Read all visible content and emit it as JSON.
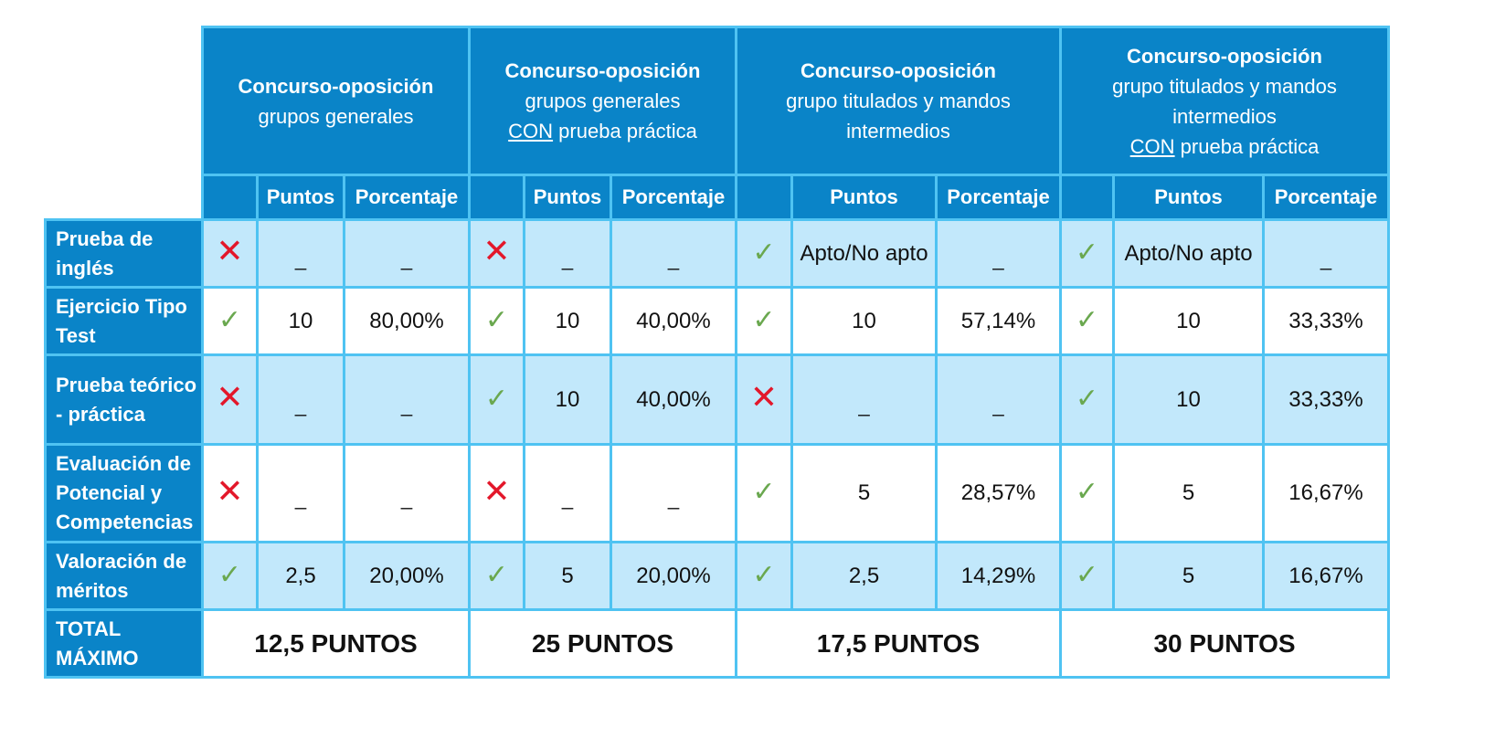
{
  "groups": [
    {
      "title": "Concurso-oposición",
      "sub1": "grupos generales",
      "con": "",
      "sub2": ""
    },
    {
      "title": "Concurso-oposición",
      "sub1": "grupos generales",
      "con": "CON",
      "sub2": " prueba práctica"
    },
    {
      "title": "Concurso-oposición",
      "sub1": "grupo titulados y mandos intermedios",
      "con": "",
      "sub2": ""
    },
    {
      "title": "Concurso-oposición",
      "sub1": "grupo titulados y mandos intermedios",
      "con": "CON",
      "sub2": " prueba práctica"
    }
  ],
  "col_headers": {
    "points": "Puntos",
    "percent": "Porcentaje"
  },
  "rows": [
    {
      "label": "Prueba de inglés",
      "cells": [
        {
          "mark": "no",
          "pts": "_",
          "pct": "_"
        },
        {
          "mark": "no",
          "pts": "_",
          "pct": "_"
        },
        {
          "mark": "ok",
          "pts": "Apto/No apto",
          "pct": "_"
        },
        {
          "mark": "ok",
          "pts": "Apto/No apto",
          "pct": "_"
        }
      ]
    },
    {
      "label": "Ejercicio Tipo Test",
      "cells": [
        {
          "mark": "ok",
          "pts": "10",
          "pct": "80,00%"
        },
        {
          "mark": "ok",
          "pts": "10",
          "pct": "40,00%"
        },
        {
          "mark": "ok",
          "pts": "10",
          "pct": "57,14%"
        },
        {
          "mark": "ok",
          "pts": "10",
          "pct": "33,33%"
        }
      ]
    },
    {
      "label": "Prueba teórico - práctica",
      "cells": [
        {
          "mark": "no",
          "pts": "_",
          "pct": "_"
        },
        {
          "mark": "ok",
          "pts": "10",
          "pct": "40,00%"
        },
        {
          "mark": "no",
          "pts": "_",
          "pct": "_"
        },
        {
          "mark": "ok",
          "pts": "10",
          "pct": "33,33%"
        }
      ]
    },
    {
      "label": "Evaluación de Potencial y Competencias",
      "cells": [
        {
          "mark": "no",
          "pts": "_",
          "pct": "_"
        },
        {
          "mark": "no",
          "pts": "_",
          "pct": "_"
        },
        {
          "mark": "ok",
          "pts": "5",
          "pct": "28,57%"
        },
        {
          "mark": "ok",
          "pts": "5",
          "pct": "16,67%"
        }
      ]
    },
    {
      "label": "Valoración de méritos",
      "cells": [
        {
          "mark": "ok",
          "pts": "2,5",
          "pct": "20,00%"
        },
        {
          "mark": "ok",
          "pts": "5",
          "pct": "20,00%"
        },
        {
          "mark": "ok",
          "pts": "2,5",
          "pct": "14,29%"
        },
        {
          "mark": "ok",
          "pts": "5",
          "pct": "16,67%"
        }
      ]
    }
  ],
  "total": {
    "label": "TOTAL MÁXIMO",
    "values": [
      "12,5 PUNTOS",
      "25 PUNTOS",
      "17,5 PUNTOS",
      "30 PUNTOS"
    ]
  },
  "marks": {
    "ok": "✓",
    "no": "✕"
  },
  "colors": {
    "header_blue": "#0a84c8",
    "light_blue": "#c2e8fb",
    "border": "#4fc3f2",
    "check_green": "#6aa84f",
    "cross_red": "#e3172a"
  }
}
